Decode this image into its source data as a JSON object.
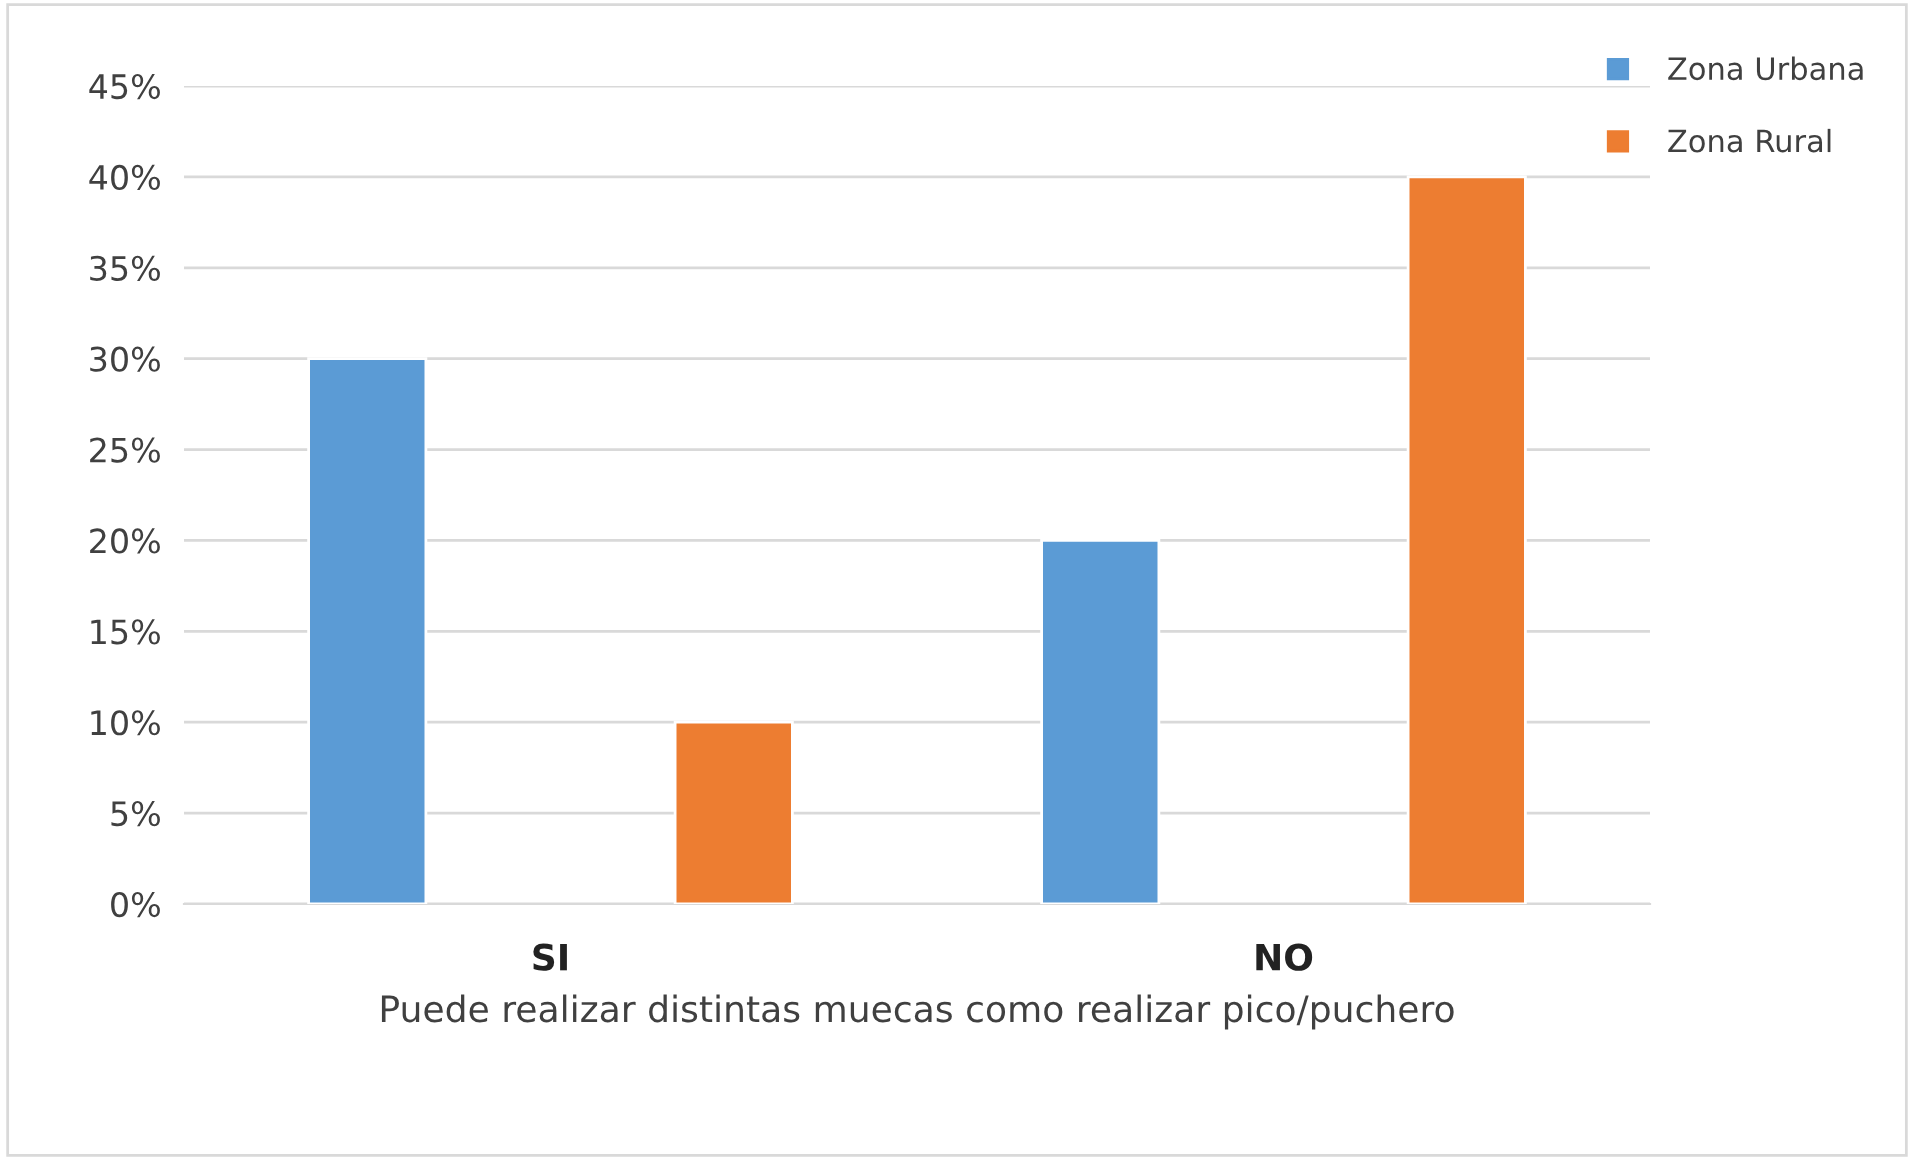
{
  "chart_data": {
    "type": "bar",
    "xlabel": "Puede realizar distintas muecas como realizar pico/puchero",
    "categories": [
      "SI",
      "NO"
    ],
    "series": [
      {
        "name": "Zona Urbana",
        "color": "#5b9bd5",
        "values": [
          30,
          20
        ]
      },
      {
        "name": "Zona Rural",
        "color": "#ed7d31",
        "values": [
          10,
          40
        ]
      }
    ],
    "ylim": [
      0,
      45
    ],
    "yticks": [
      {
        "value": 0,
        "label": "0%"
      },
      {
        "value": 5,
        "label": "5%"
      },
      {
        "value": 10,
        "label": "10%"
      },
      {
        "value": 15,
        "label": "15%"
      },
      {
        "value": 20,
        "label": "20%"
      },
      {
        "value": 25,
        "label": "25%"
      },
      {
        "value": 30,
        "label": "30%"
      },
      {
        "value": 35,
        "label": "35%"
      },
      {
        "value": 40,
        "label": "40%"
      },
      {
        "value": 45,
        "label": "45%"
      }
    ],
    "grid": "y",
    "legend": "top right"
  }
}
